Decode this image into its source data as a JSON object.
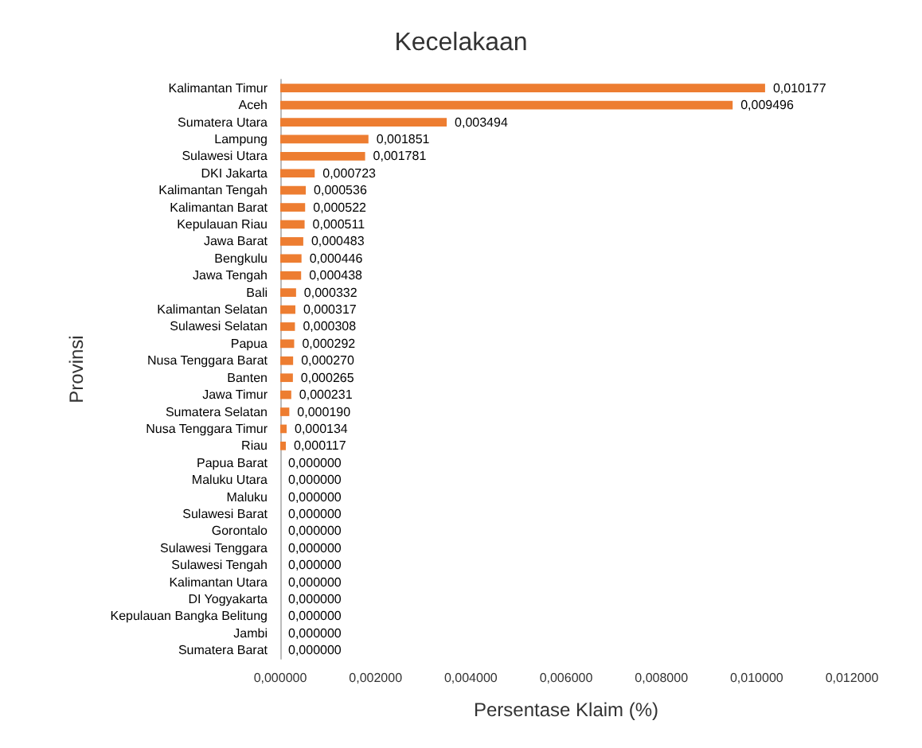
{
  "chart_data": {
    "type": "bar",
    "orientation": "horizontal",
    "title": "Kecelakaan",
    "xlabel": "Persentase Klaim (%)",
    "ylabel": "Provinsi",
    "color": "#ed7d31",
    "grid": false,
    "categories": [
      "Kalimantan Timur",
      "Aceh",
      "Sumatera Utara",
      "Lampung",
      "Sulawesi Utara",
      "DKI Jakarta",
      "Kalimantan Tengah",
      "Kalimantan Barat",
      "Kepulauan Riau",
      "Jawa Barat",
      "Bengkulu",
      "Jawa Tengah",
      "Bali",
      "Kalimantan Selatan",
      "Sulawesi Selatan",
      "Papua",
      "Nusa Tenggara Barat",
      "Banten",
      "Jawa Timur",
      "Sumatera Selatan",
      "Nusa Tenggara Timur",
      "Riau",
      "Papua Barat",
      "Maluku Utara",
      "Maluku",
      "Sulawesi Barat",
      "Gorontalo",
      "Sulawesi Tenggara",
      "Sulawesi Tengah",
      "Kalimantan Utara",
      "DI Yogyakarta",
      "Kepulauan Bangka Belitung",
      "Jambi",
      "Sumatera Barat"
    ],
    "values": [
      0.010177,
      0.009496,
      0.003494,
      0.001851,
      0.001781,
      0.000723,
      0.000536,
      0.000522,
      0.000511,
      0.000483,
      0.000446,
      0.000438,
      0.000332,
      0.000317,
      0.000308,
      0.000292,
      0.00027,
      0.000265,
      0.000231,
      0.00019,
      0.000134,
      0.000117,
      0,
      0,
      0,
      0,
      0,
      0,
      0,
      0,
      0,
      0,
      0,
      0
    ],
    "value_labels": [
      "0,010177",
      "0,009496",
      "0,003494",
      "0,001851",
      "0,001781",
      "0,000723",
      "0,000536",
      "0,000522",
      "0,000511",
      "0,000483",
      "0,000446",
      "0,000438",
      "0,000332",
      "0,000317",
      "0,000308",
      "0,000292",
      "0,000270",
      "0,000265",
      "0,000231",
      "0,000190",
      "0,000134",
      "0,000117",
      "0,000000",
      "0,000000",
      "0,000000",
      "0,000000",
      "0,000000",
      "0,000000",
      "0,000000",
      "0,000000",
      "0,000000",
      "0,000000",
      "0,000000",
      "0,000000"
    ],
    "xlim": [
      0,
      0.012
    ],
    "xticks": [
      {
        "value": 0,
        "label": "0,000000"
      },
      {
        "value": 0.002,
        "label": "0,002000"
      },
      {
        "value": 0.004,
        "label": "0,004000"
      },
      {
        "value": 0.006,
        "label": "0,006000"
      },
      {
        "value": 0.008,
        "label": "0,008000"
      },
      {
        "value": 0.01,
        "label": "0,010000"
      },
      {
        "value": 0.012,
        "label": "0,012000"
      }
    ]
  }
}
